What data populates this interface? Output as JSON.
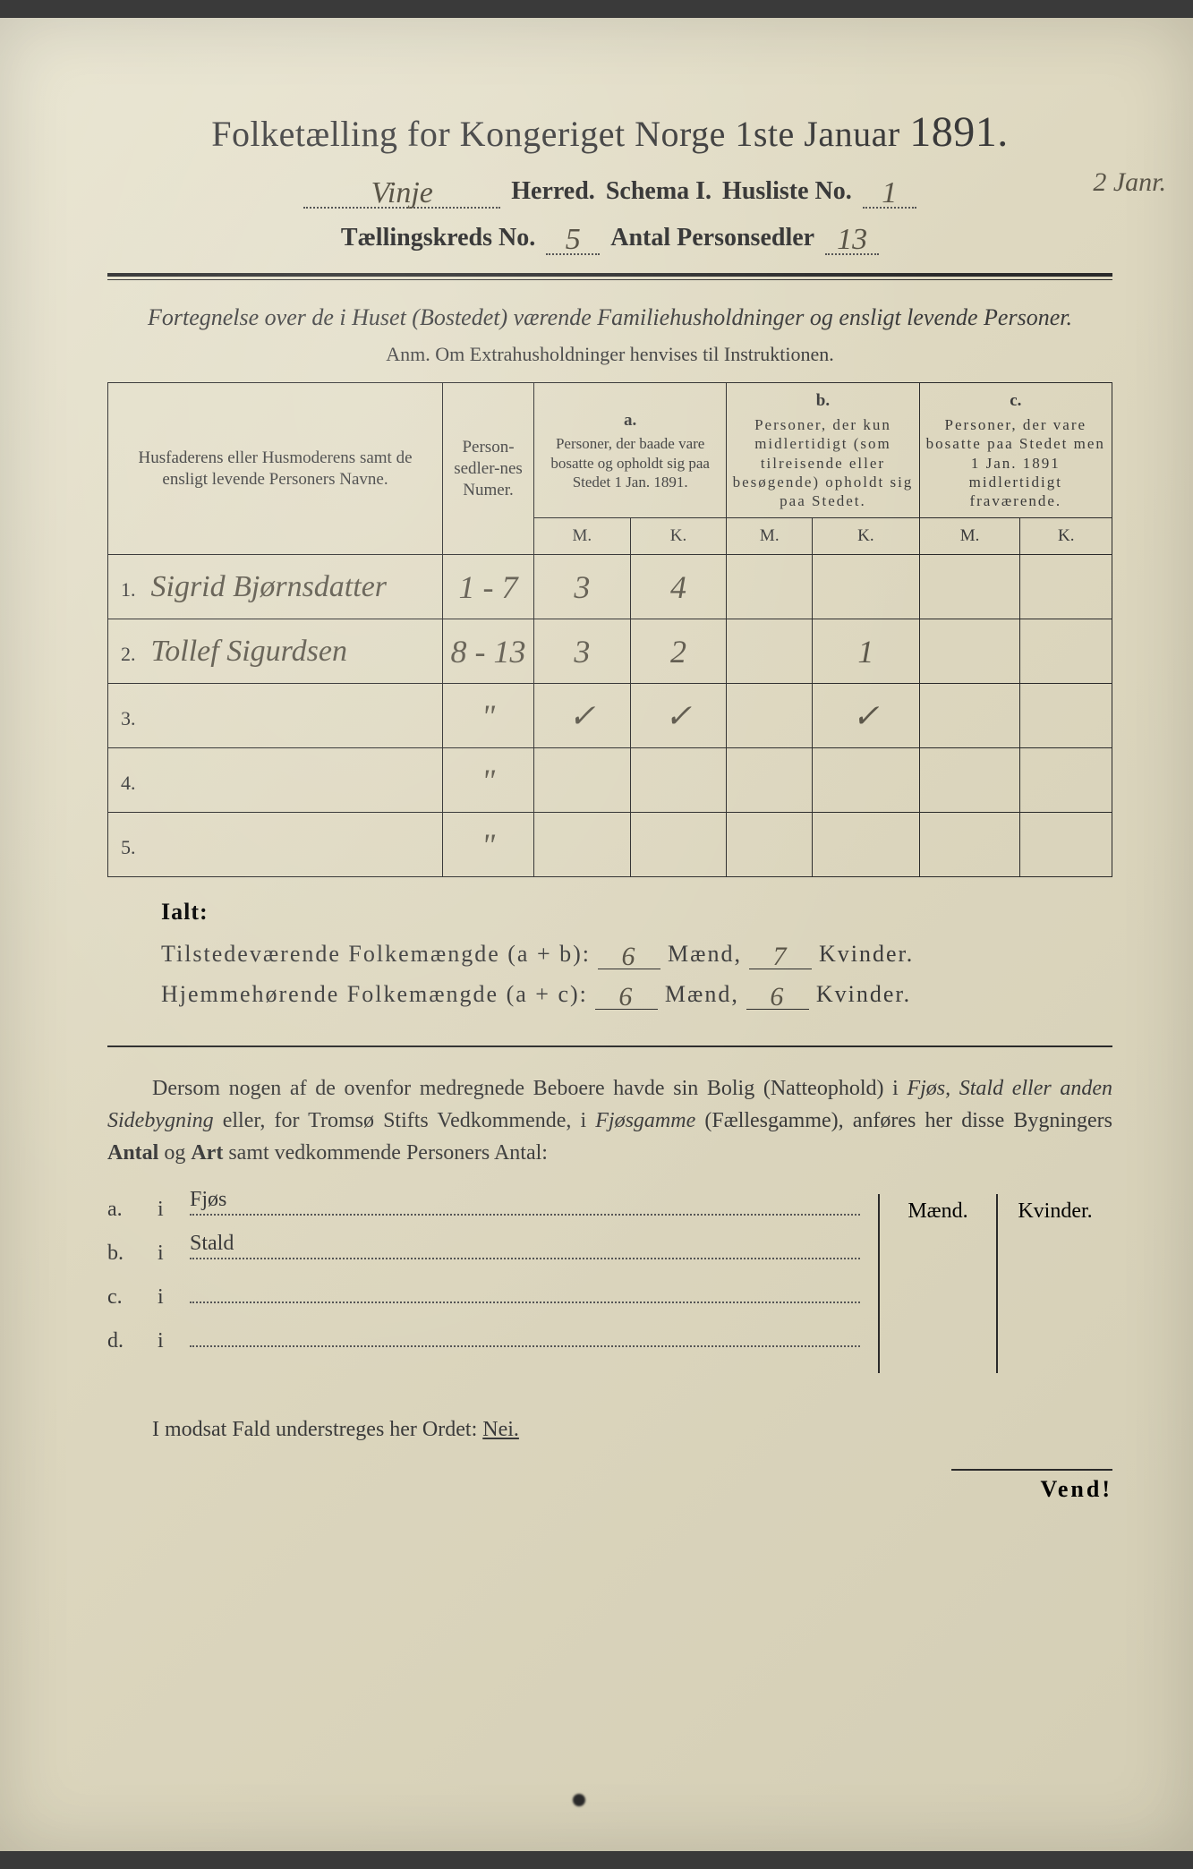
{
  "title": {
    "main_a": "Folketælling for Kongeriget Norge 1ste Januar",
    "year": "1891."
  },
  "header": {
    "herred_value": "Vinje",
    "herred_label": "Herred.",
    "schema_label": "Schema I.",
    "husliste_label": "Husliste No.",
    "husliste_value": "1",
    "margin_date": "2 Janr.",
    "kreds_label": "Tællingskreds No.",
    "kreds_value": "5",
    "antal_label": "Antal Personsedler",
    "antal_value": "13"
  },
  "subtitle": "Fortegnelse over de i Huset (Bostedet) værende Familiehusholdninger og ensligt levende Personer.",
  "anm": "Anm.  Om Extrahusholdninger henvises til Instruktionen.",
  "table": {
    "columns": {
      "names": "Husfaderens eller Husmoderens samt de ensligt levende Personers Navne.",
      "numer": "Person-sedler-nes Numer.",
      "a_letter": "a.",
      "a_text": "Personer, der baade vare bosatte og opholdt sig paa Stedet 1 Jan. 1891.",
      "b_letter": "b.",
      "b_text": "Personer, der kun midlertidigt (som tilreisende eller besøgende) opholdt sig paa Stedet.",
      "c_letter": "c.",
      "c_text": "Personer, der vare bosatte paa Stedet men 1 Jan. 1891 midlertidigt fraværende.",
      "m": "M.",
      "k": "K."
    },
    "rows": [
      {
        "n": "1.",
        "name": "Sigrid Bjørnsdatter",
        "num": "1 - 7",
        "am": "3",
        "ak": "4",
        "bm": "",
        "bk": "",
        "cm": "",
        "ck": ""
      },
      {
        "n": "2.",
        "name": "Tollef Sigurdsen",
        "num": "8 - 13",
        "am": "3",
        "ak": "2",
        "bm": "",
        "bk": "1",
        "cm": "",
        "ck": ""
      },
      {
        "n": "3.",
        "name": "",
        "num": "\"",
        "am": "✓",
        "ak": "✓",
        "bm": "",
        "bk": "✓",
        "cm": "",
        "ck": ""
      },
      {
        "n": "4.",
        "name": "",
        "num": "\"",
        "am": "",
        "ak": "",
        "bm": "",
        "bk": "",
        "cm": "",
        "ck": ""
      },
      {
        "n": "5.",
        "name": "",
        "num": "\"",
        "am": "",
        "ak": "",
        "bm": "",
        "bk": "",
        "cm": "",
        "ck": ""
      }
    ]
  },
  "ialt": {
    "title": "Ialt:",
    "line1_a": "Tilstedeværende Folkemængde (a + b):",
    "line1_m": "6",
    "line1_mlabel": "Mænd,",
    "line1_k": "7",
    "line1_klabel": "Kvinder.",
    "line2_a": "Hjemmehørende Folkemængde (a + c):",
    "line2_m": "6",
    "line2_k": "6"
  },
  "para": {
    "t1": "Dersom nogen af de ovenfor medregnede Beboere havde sin Bolig (Natteophold) i ",
    "i1": "Fjøs, Stald eller anden Sidebygning",
    "t2": " eller, for Tromsø Stifts Vedkommende, i ",
    "i2": "Fjøsgamme",
    "t3": " (Fællesgamme), anføres her disse Bygningers ",
    "b1": "Antal",
    "t4": " og ",
    "b2": "Art",
    "t5": " samt vedkommende Personers Antal:"
  },
  "lower": {
    "rows": [
      {
        "lbl": "a.",
        "txt": "Fjøs"
      },
      {
        "lbl": "b.",
        "txt": "Stald"
      },
      {
        "lbl": "c.",
        "txt": ""
      },
      {
        "lbl": "d.",
        "txt": ""
      }
    ],
    "maend": "Mænd.",
    "kvinder": "Kvinder."
  },
  "nei": {
    "text": "I modsat Fald understreges her Ordet: ",
    "word": "Nei."
  },
  "vend": "Vend!",
  "colors": {
    "ink": "#3a3a3a",
    "pencil": "#5a5548",
    "paper_light": "#e8e4d0",
    "paper_dark": "#d4ceb5",
    "border": "#2a2a2a"
  }
}
